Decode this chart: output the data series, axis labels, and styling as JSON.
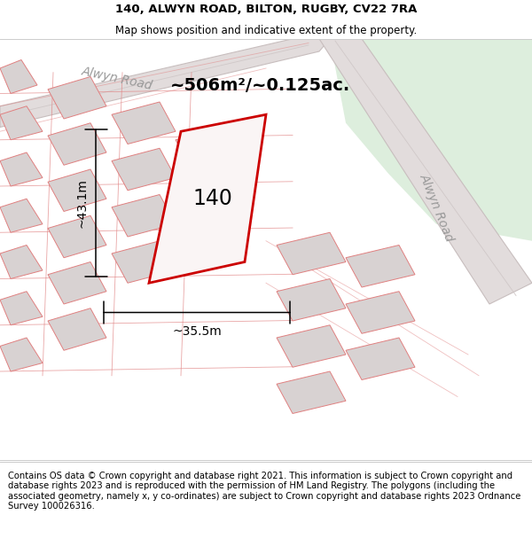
{
  "title": "140, ALWYN ROAD, BILTON, RUGBY, CV22 7RA",
  "subtitle": "Map shows position and indicative extent of the property.",
  "footer": "Contains OS data © Crown copyright and database right 2021. This information is subject to Crown copyright and database rights 2023 and is reproduced with the permission of HM Land Registry. The polygons (including the associated geometry, namely x, y co-ordinates) are subject to Crown copyright and database rights 2023 Ordnance Survey 100026316.",
  "map_bg": "#f2eeee",
  "green_area_color": "#ddeedd",
  "road_fill_color": "#e2dcdc",
  "block_fill_color": "#d8d2d2",
  "block_edge_color": "#e08080",
  "parcel_line_color": "#e08080",
  "red_outline_color": "#cc0000",
  "prop_fill_color": "#faf5f5",
  "road_label_color": "#999999",
  "road_label1": "Alwyn Road",
  "road_label2": "Alwyn Road",
  "area_label": "~506m²/~0.125ac.",
  "dim_label_h": "~43.1m",
  "dim_label_w": "~35.5m",
  "prop_label": "140",
  "title_fontsize": 9.5,
  "subtitle_fontsize": 8.5,
  "footer_fontsize": 7.2,
  "area_fontsize": 14,
  "prop_label_fontsize": 17,
  "road_label_fontsize": 10,
  "dim_fontsize": 10,
  "figsize": [
    6.0,
    6.25
  ],
  "dpi": 100
}
